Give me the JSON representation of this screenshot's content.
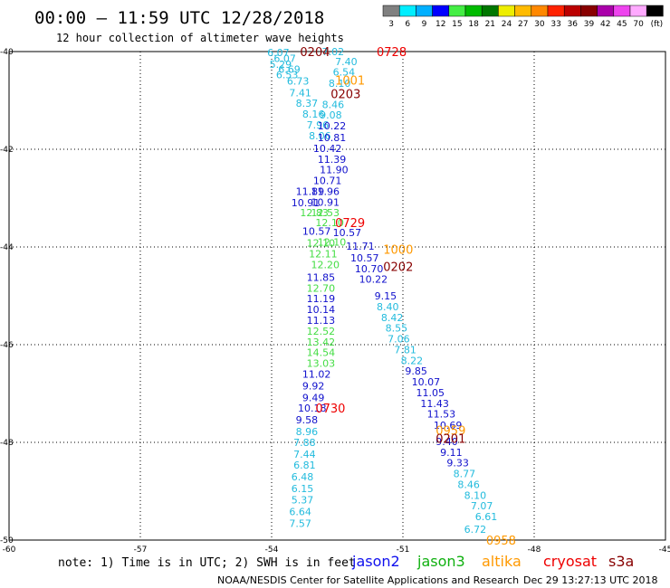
{
  "header": {
    "title": "00:00 – 11:59 UTC 12/28/2018",
    "subtitle": "12 hour collection of altimeter wave heights"
  },
  "colorbar": {
    "unit": "(ft)",
    "bins": [
      {
        "label": "3",
        "color": "#808080"
      },
      {
        "label": "6",
        "color": "#00eeff"
      },
      {
        "label": "9",
        "color": "#00b0ff"
      },
      {
        "label": "12",
        "color": "#0000ff"
      },
      {
        "label": "15",
        "color": "#44ee44"
      },
      {
        "label": "18",
        "color": "#00bb00"
      },
      {
        "label": "21",
        "color": "#007700"
      },
      {
        "label": "24",
        "color": "#eeee00"
      },
      {
        "label": "27",
        "color": "#ffbb00"
      },
      {
        "label": "30",
        "color": "#ff8800"
      },
      {
        "label": "33",
        "color": "#ff2200"
      },
      {
        "label": "36",
        "color": "#bb0000"
      },
      {
        "label": "39",
        "color": "#880000"
      },
      {
        "label": "42",
        "color": "#aa00aa"
      },
      {
        "label": "45",
        "color": "#ee44ee"
      },
      {
        "label": "70",
        "color": "#ffaaff"
      },
      {
        "label": "",
        "color": "#000000"
      }
    ]
  },
  "footer": {
    "note": "note: 1) Time is in UTC; 2) SWH is in feet",
    "credit": "NOAA/NESDIS Center for Satellite Applications and Research",
    "timestamp": "Dec 29 13:27:13 UTC 2018",
    "satellites": [
      {
        "name": "jason2",
        "color": "#1010ee"
      },
      {
        "name": "jason3",
        "color": "#10b010"
      },
      {
        "name": "altika",
        "color": "#ff9900"
      },
      {
        "name": "cryosat",
        "color": "#ee0000"
      },
      {
        "name": "s3a",
        "color": "#880000"
      }
    ]
  },
  "chart_data": {
    "type": "scatter",
    "xlim": [
      -60,
      -45
    ],
    "ylim": [
      -50,
      -40
    ],
    "x_ticks": [
      -60,
      -57,
      -54,
      -51,
      -48,
      -45
    ],
    "y_ticks": [
      -50,
      -48,
      -46,
      -44,
      -42,
      -40
    ],
    "grid": true,
    "colors": {
      "cyan": "#22bbdd",
      "blue": "#1010cc",
      "green": "#44dd44",
      "orange": "#ff9900",
      "red": "#ee0000",
      "darkred": "#880000"
    },
    "passes": [
      {
        "label": "0204",
        "x": -53.35,
        "y": -40.0,
        "color": "darkred"
      },
      {
        "label": "0728",
        "x": -51.6,
        "y": -40.0,
        "color": "red"
      },
      {
        "label": "1001",
        "x": -52.55,
        "y": -40.58,
        "color": "orange"
      },
      {
        "label": "0203",
        "x": -52.65,
        "y": -40.86,
        "color": "darkred"
      },
      {
        "label": "0729",
        "x": -52.55,
        "y": -43.5,
        "color": "red"
      },
      {
        "label": "1000",
        "x": -51.45,
        "y": -44.05,
        "color": "orange"
      },
      {
        "label": "0202",
        "x": -51.45,
        "y": -44.4,
        "color": "darkred"
      },
      {
        "label": "0730",
        "x": -53.0,
        "y": -47.3,
        "color": "red"
      },
      {
        "label": "0959",
        "x": -50.25,
        "y": -47.75,
        "color": "orange"
      },
      {
        "label": "0201",
        "x": -50.25,
        "y": -47.92,
        "color": "darkred"
      },
      {
        "label": "0958",
        "x": -49.1,
        "y": -50.0,
        "color": "orange"
      }
    ],
    "points": [
      {
        "x": -54.1,
        "y": -40.02,
        "v": "6.07",
        "c": "cyan"
      },
      {
        "x": -53.95,
        "y": -40.14,
        "v": "6.07",
        "c": "cyan"
      },
      {
        "x": -54.05,
        "y": -40.26,
        "v": "5.29",
        "c": "cyan"
      },
      {
        "x": -53.85,
        "y": -40.36,
        "v": "6.69",
        "c": "cyan"
      },
      {
        "x": -53.9,
        "y": -40.47,
        "v": "6.53",
        "c": "cyan"
      },
      {
        "x": -53.65,
        "y": -40.6,
        "v": "6.73",
        "c": "cyan"
      },
      {
        "x": -53.6,
        "y": -40.84,
        "v": "7.41",
        "c": "cyan"
      },
      {
        "x": -53.45,
        "y": -41.06,
        "v": "8.37",
        "c": "cyan"
      },
      {
        "x": -53.3,
        "y": -41.28,
        "v": "8.16",
        "c": "cyan"
      },
      {
        "x": -53.2,
        "y": -41.5,
        "v": "7.96",
        "c": "cyan"
      },
      {
        "x": -53.15,
        "y": -41.72,
        "v": "8.06",
        "c": "cyan"
      },
      {
        "x": -52.85,
        "y": -40.0,
        "v": "7.02",
        "c": "cyan"
      },
      {
        "x": -52.55,
        "y": -40.2,
        "v": "7.40",
        "c": "cyan"
      },
      {
        "x": -52.6,
        "y": -40.42,
        "v": "6.54",
        "c": "cyan"
      },
      {
        "x": -52.7,
        "y": -40.65,
        "v": "8.10",
        "c": "cyan"
      },
      {
        "x": -52.85,
        "y": -41.08,
        "v": "8.46",
        "c": "cyan"
      },
      {
        "x": -52.9,
        "y": -41.3,
        "v": "9.08",
        "c": "cyan"
      },
      {
        "x": -52.95,
        "y": -41.52,
        "v": "10.22",
        "c": "blue"
      },
      {
        "x": -52.95,
        "y": -41.76,
        "v": "10.81",
        "c": "blue"
      },
      {
        "x": -53.05,
        "y": -41.98,
        "v": "10.42",
        "c": "blue"
      },
      {
        "x": -52.95,
        "y": -42.2,
        "v": "11.39",
        "c": "blue"
      },
      {
        "x": -52.9,
        "y": -42.42,
        "v": "11.90",
        "c": "blue"
      },
      {
        "x": -53.05,
        "y": -42.64,
        "v": "10.71",
        "c": "blue"
      },
      {
        "x": -53.1,
        "y": -42.86,
        "v": "11.96",
        "c": "blue"
      },
      {
        "x": -53.1,
        "y": -43.08,
        "v": "10.91",
        "c": "blue"
      },
      {
        "x": -53.1,
        "y": -43.3,
        "v": "12.53",
        "c": "green"
      },
      {
        "x": -53.0,
        "y": -43.5,
        "v": "12.10",
        "c": "green"
      },
      {
        "x": -52.6,
        "y": -43.7,
        "v": "10.57",
        "c": "blue"
      },
      {
        "x": -52.95,
        "y": -43.9,
        "v": "12.10",
        "c": "green"
      },
      {
        "x": -52.3,
        "y": -43.98,
        "v": "11.71",
        "c": "blue"
      },
      {
        "x": -52.2,
        "y": -44.22,
        "v": "10.57",
        "c": "blue"
      },
      {
        "x": -52.1,
        "y": -44.44,
        "v": "10.70",
        "c": "blue"
      },
      {
        "x": -52.0,
        "y": -44.66,
        "v": "10.22",
        "c": "blue"
      },
      {
        "x": -51.65,
        "y": -45.0,
        "v": "9.15",
        "c": "blue"
      },
      {
        "x": -51.6,
        "y": -45.22,
        "v": "8.40",
        "c": "cyan"
      },
      {
        "x": -51.5,
        "y": -45.44,
        "v": "8.42",
        "c": "cyan"
      },
      {
        "x": -51.4,
        "y": -45.66,
        "v": "8.55",
        "c": "cyan"
      },
      {
        "x": -51.35,
        "y": -45.88,
        "v": "7.06",
        "c": "cyan"
      },
      {
        "x": -51.2,
        "y": -46.1,
        "v": "7.81",
        "c": "cyan"
      },
      {
        "x": -51.05,
        "y": -46.32,
        "v": "8.22",
        "c": "cyan"
      },
      {
        "x": -50.95,
        "y": -46.54,
        "v": "9.85",
        "c": "blue"
      },
      {
        "x": -50.8,
        "y": -46.76,
        "v": "10.07",
        "c": "blue"
      },
      {
        "x": -50.7,
        "y": -46.98,
        "v": "11.05",
        "c": "blue"
      },
      {
        "x": -50.6,
        "y": -47.2,
        "v": "11.43",
        "c": "blue"
      },
      {
        "x": -50.45,
        "y": -47.42,
        "v": "11.53",
        "c": "blue"
      },
      {
        "x": -50.3,
        "y": -47.65,
        "v": "10.69",
        "c": "blue"
      },
      {
        "x": -50.25,
        "y": -47.98,
        "v": "9.40",
        "c": "blue"
      },
      {
        "x": -50.15,
        "y": -48.2,
        "v": "9.11",
        "c": "blue"
      },
      {
        "x": -50.0,
        "y": -48.42,
        "v": "9.33",
        "c": "blue"
      },
      {
        "x": -49.85,
        "y": -48.64,
        "v": "8.77",
        "c": "cyan"
      },
      {
        "x": -49.75,
        "y": -48.86,
        "v": "8.46",
        "c": "cyan"
      },
      {
        "x": -49.6,
        "y": -49.08,
        "v": "8.10",
        "c": "cyan"
      },
      {
        "x": -49.45,
        "y": -49.3,
        "v": "7.07",
        "c": "cyan"
      },
      {
        "x": -49.35,
        "y": -49.52,
        "v": "6.61",
        "c": "cyan"
      },
      {
        "x": -49.6,
        "y": -49.78,
        "v": "6.72",
        "c": "cyan"
      },
      {
        "x": -53.45,
        "y": -42.86,
        "v": "11.89",
        "c": "blue"
      },
      {
        "x": -53.55,
        "y": -43.09,
        "v": "10.91",
        "c": "blue"
      },
      {
        "x": -53.35,
        "y": -43.3,
        "v": "12.83",
        "c": "green"
      },
      {
        "x": -53.3,
        "y": -43.68,
        "v": "10.57",
        "c": "blue"
      },
      {
        "x": -53.2,
        "y": -43.92,
        "v": "12.10",
        "c": "green"
      },
      {
        "x": -53.15,
        "y": -44.14,
        "v": "12.11",
        "c": "green"
      },
      {
        "x": -53.1,
        "y": -44.36,
        "v": "12.20",
        "c": "green"
      },
      {
        "x": -53.2,
        "y": -44.62,
        "v": "11.85",
        "c": "blue"
      },
      {
        "x": -53.2,
        "y": -44.84,
        "v": "12.70",
        "c": "green"
      },
      {
        "x": -53.2,
        "y": -45.06,
        "v": "11.19",
        "c": "blue"
      },
      {
        "x": -53.2,
        "y": -45.28,
        "v": "10.14",
        "c": "blue"
      },
      {
        "x": -53.2,
        "y": -45.5,
        "v": "11.13",
        "c": "blue"
      },
      {
        "x": -53.2,
        "y": -45.72,
        "v": "12.52",
        "c": "green"
      },
      {
        "x": -53.2,
        "y": -45.94,
        "v": "13.42",
        "c": "green"
      },
      {
        "x": -53.2,
        "y": -46.16,
        "v": "14.54",
        "c": "green"
      },
      {
        "x": -53.2,
        "y": -46.38,
        "v": "13.03",
        "c": "green"
      },
      {
        "x": -53.3,
        "y": -46.6,
        "v": "11.02",
        "c": "blue"
      },
      {
        "x": -53.3,
        "y": -46.84,
        "v": "9.92",
        "c": "blue"
      },
      {
        "x": -53.3,
        "y": -47.08,
        "v": "9.49",
        "c": "blue"
      },
      {
        "x": -53.4,
        "y": -47.3,
        "v": "10.18",
        "c": "blue"
      },
      {
        "x": -53.45,
        "y": -47.54,
        "v": "9.58",
        "c": "blue"
      },
      {
        "x": -53.45,
        "y": -47.78,
        "v": "8.96",
        "c": "cyan"
      },
      {
        "x": -53.5,
        "y": -48.0,
        "v": "7.88",
        "c": "cyan"
      },
      {
        "x": -53.5,
        "y": -48.24,
        "v": "7.44",
        "c": "cyan"
      },
      {
        "x": -53.5,
        "y": -48.46,
        "v": "6.81",
        "c": "cyan"
      },
      {
        "x": -53.55,
        "y": -48.7,
        "v": "6.48",
        "c": "cyan"
      },
      {
        "x": -53.55,
        "y": -48.94,
        "v": "6.15",
        "c": "cyan"
      },
      {
        "x": -53.55,
        "y": -49.18,
        "v": "5.37",
        "c": "cyan"
      },
      {
        "x": -53.6,
        "y": -49.42,
        "v": "6.64",
        "c": "cyan"
      },
      {
        "x": -53.6,
        "y": -49.66,
        "v": "7.57",
        "c": "cyan"
      }
    ]
  }
}
